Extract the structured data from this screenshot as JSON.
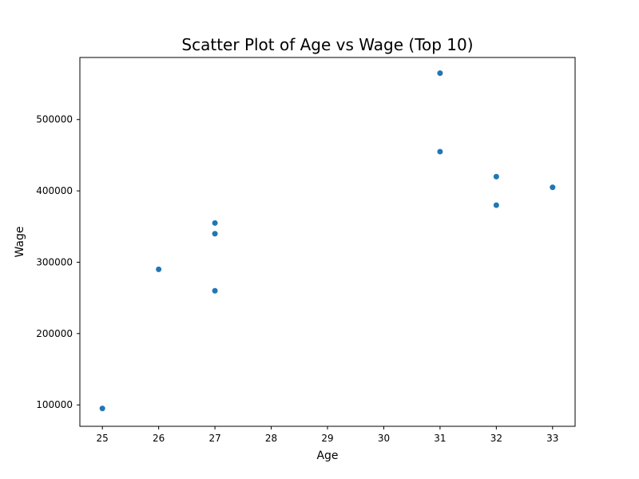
{
  "chart_data": {
    "type": "scatter",
    "title": "Scatter Plot of Age vs Wage (Top 10)",
    "xlabel": "Age",
    "ylabel": "Wage",
    "xlim": [
      24.6,
      33.4
    ],
    "ylim": [
      70000,
      587000
    ],
    "xticks": [
      25,
      26,
      27,
      28,
      29,
      30,
      31,
      32,
      33
    ],
    "yticks": [
      100000,
      200000,
      300000,
      400000,
      500000
    ],
    "grid": false,
    "legend": "none",
    "point_color": "#1f77b4",
    "points": [
      {
        "x": 31,
        "y": 565000
      },
      {
        "x": 31,
        "y": 455000
      },
      {
        "x": 32,
        "y": 420000
      },
      {
        "x": 33,
        "y": 405000
      },
      {
        "x": 32,
        "y": 380000
      },
      {
        "x": 27,
        "y": 355000
      },
      {
        "x": 27,
        "y": 340000
      },
      {
        "x": 26,
        "y": 290000
      },
      {
        "x": 27,
        "y": 260000
      },
      {
        "x": 25,
        "y": 95000
      }
    ]
  }
}
